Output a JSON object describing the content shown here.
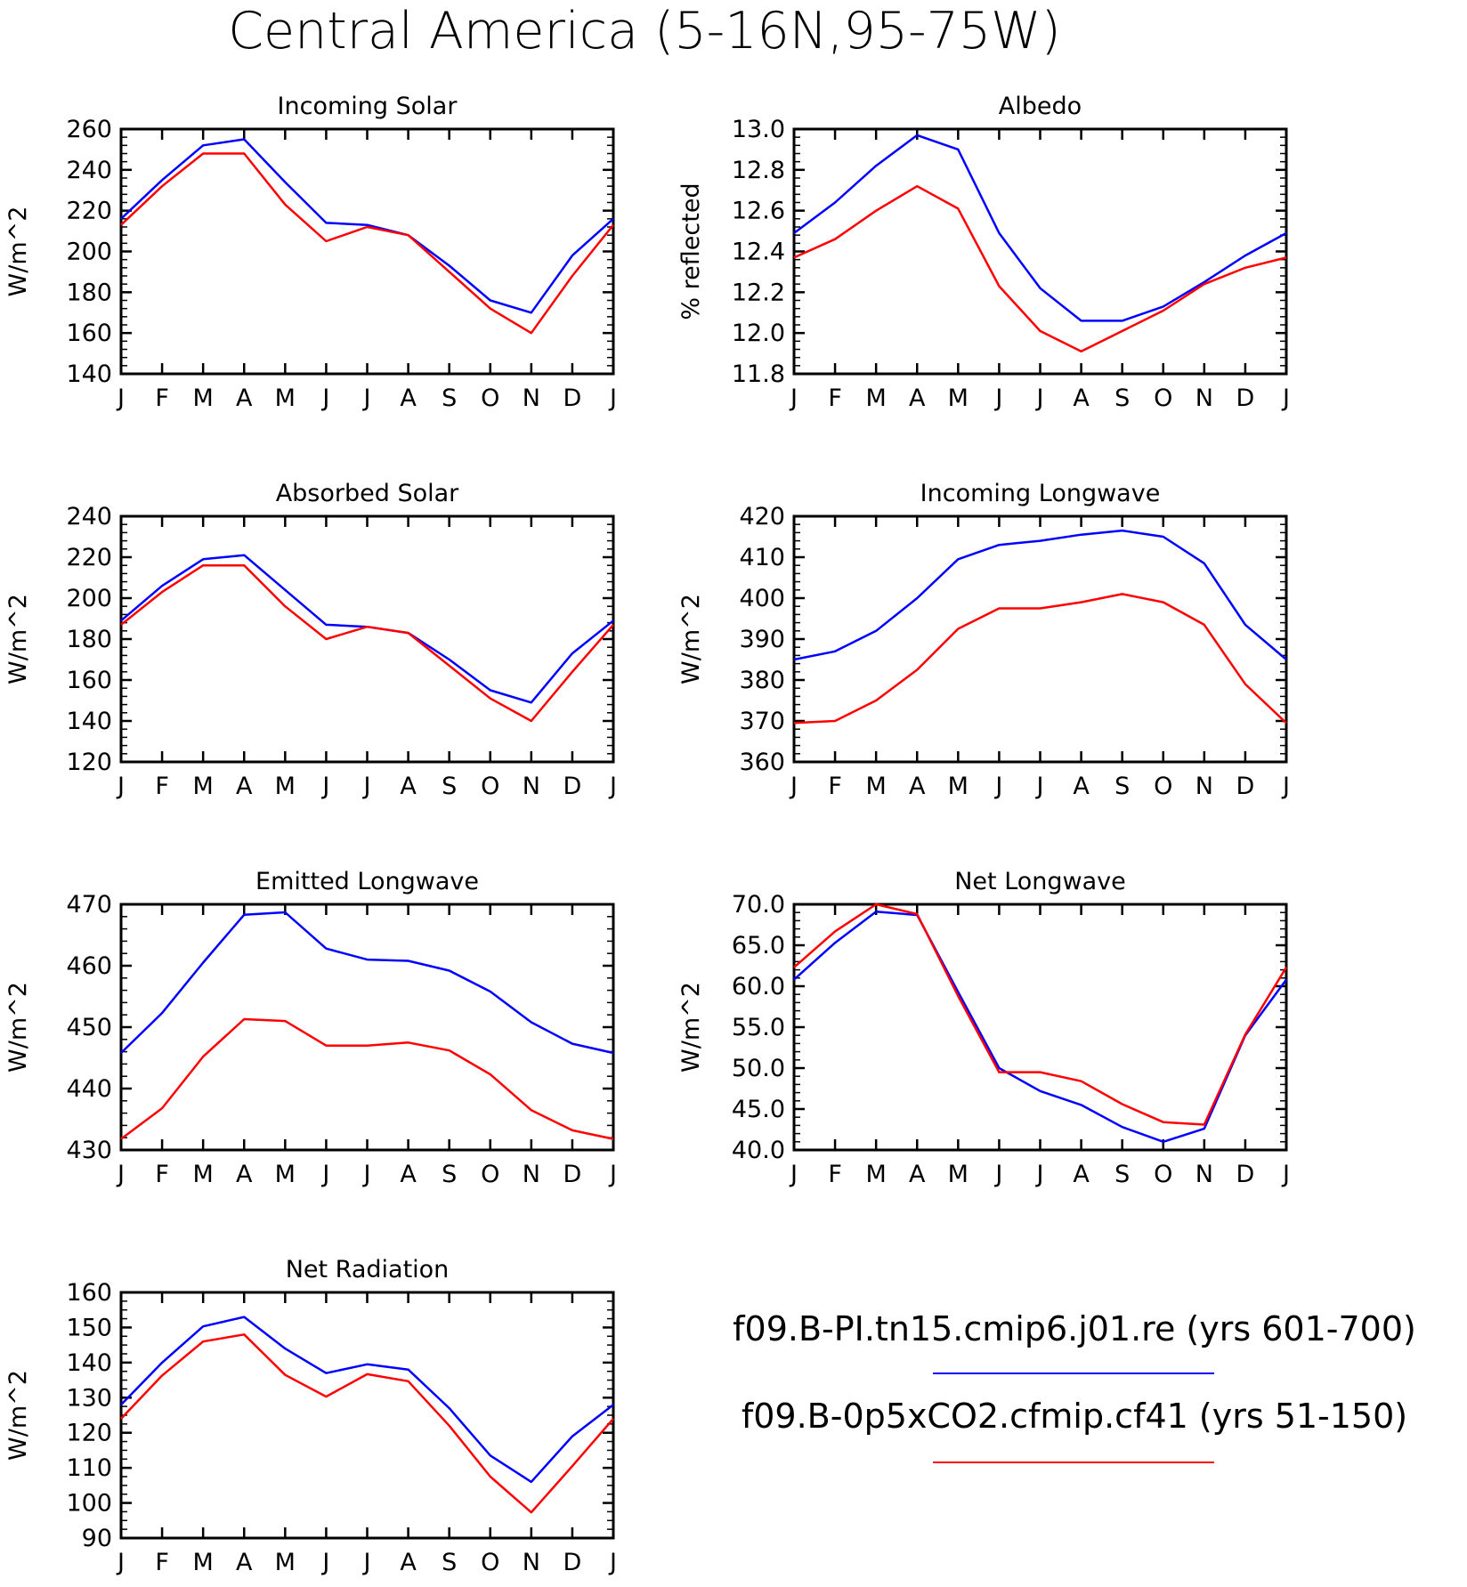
{
  "title": "Central America (5-16N,95-75W)",
  "legend": [
    {
      "label": "f09.B-PI.tn15.cmip6.j01.re (yrs 601-700)",
      "color": "#0000ff"
    },
    {
      "label": "f09.B-0p5xCO2.cfmip.cf41 (yrs 51-150)",
      "color": "#ff0000"
    }
  ],
  "chart_data": [
    {
      "type": "line",
      "title": "Incoming Solar",
      "ylabel": "W/m^2",
      "x": [
        "J",
        "F",
        "M",
        "A",
        "M",
        "J",
        "J",
        "A",
        "S",
        "O",
        "N",
        "D",
        "J"
      ],
      "ylim": [
        140,
        260
      ],
      "yticks": [
        "140",
        "160",
        "180",
        "200",
        "220",
        "240",
        "260"
      ],
      "grid": false,
      "series": [
        {
          "name": "f09.B-PI.tn15.cmip6.j01.re (yrs 601-700)",
          "color": "#0000ff",
          "values": [
            216,
            235,
            252,
            255,
            234,
            214,
            213,
            208,
            193,
            176,
            170,
            198,
            216
          ]
        },
        {
          "name": "f09.B-0p5xCO2.cfmip.cf41 (yrs 51-150)",
          "color": "#ff0000",
          "values": [
            213,
            232,
            248,
            248,
            223,
            205,
            212,
            208,
            190,
            172,
            160,
            188,
            213
          ]
        }
      ]
    },
    {
      "type": "line",
      "title": "Albedo",
      "ylabel": "% reflected",
      "x": [
        "J",
        "F",
        "M",
        "A",
        "M",
        "J",
        "J",
        "A",
        "S",
        "O",
        "N",
        "D",
        "J"
      ],
      "ylim": [
        11.8,
        13.0
      ],
      "yticks": [
        "11.8",
        "12.0",
        "12.2",
        "12.4",
        "12.6",
        "12.8",
        "13.0"
      ],
      "grid": false,
      "series": [
        {
          "name": "f09.B-PI.tn15.cmip6.j01.re (yrs 601-700)",
          "color": "#0000ff",
          "values": [
            12.49,
            12.64,
            12.82,
            12.97,
            12.9,
            12.49,
            12.22,
            12.06,
            12.06,
            12.13,
            12.25,
            12.38,
            12.49
          ]
        },
        {
          "name": "f09.B-0p5xCO2.cfmip.cf41 (yrs 51-150)",
          "color": "#ff0000",
          "values": [
            12.37,
            12.46,
            12.6,
            12.72,
            12.61,
            12.23,
            12.01,
            11.91,
            12.01,
            12.11,
            12.24,
            12.32,
            12.37
          ]
        }
      ]
    },
    {
      "type": "line",
      "title": "Absorbed Solar",
      "ylabel": "W/m^2",
      "x": [
        "J",
        "F",
        "M",
        "A",
        "M",
        "J",
        "J",
        "A",
        "S",
        "O",
        "N",
        "D",
        "J"
      ],
      "ylim": [
        120,
        240
      ],
      "yticks": [
        "120",
        "140",
        "160",
        "180",
        "200",
        "220",
        "240"
      ],
      "grid": false,
      "series": [
        {
          "name": "f09.B-PI.tn15.cmip6.j01.re (yrs 601-700)",
          "color": "#0000ff",
          "values": [
            189,
            206,
            219,
            221,
            204,
            187,
            186,
            183,
            170,
            155,
            149,
            173,
            189
          ]
        },
        {
          "name": "f09.B-0p5xCO2.cfmip.cf41 (yrs 51-150)",
          "color": "#ff0000",
          "values": [
            187,
            203,
            216,
            216,
            196,
            180,
            186,
            183,
            167,
            151,
            140,
            164,
            187
          ]
        }
      ]
    },
    {
      "type": "line",
      "title": "Incoming Longwave",
      "ylabel": "W/m^2",
      "x": [
        "J",
        "F",
        "M",
        "A",
        "M",
        "J",
        "J",
        "A",
        "S",
        "O",
        "N",
        "D",
        "J"
      ],
      "ylim": [
        360,
        420
      ],
      "yticks": [
        "360",
        "370",
        "380",
        "390",
        "400",
        "410",
        "420"
      ],
      "grid": false,
      "series": [
        {
          "name": "f09.B-PI.tn15.cmip6.j01.re (yrs 601-700)",
          "color": "#0000ff",
          "values": [
            385,
            387,
            392,
            400,
            409.5,
            413,
            414,
            415.5,
            416.5,
            415,
            408.5,
            393.5,
            385
          ]
        },
        {
          "name": "f09.B-0p5xCO2.cfmip.cf41 (yrs 51-150)",
          "color": "#ff0000",
          "values": [
            369.5,
            370,
            375,
            382.5,
            392.5,
            397.5,
            397.5,
            399,
            401,
            399,
            393.5,
            379,
            369.5
          ]
        }
      ]
    },
    {
      "type": "line",
      "title": "Emitted Longwave",
      "ylabel": "W/m^2",
      "x": [
        "J",
        "F",
        "M",
        "A",
        "M",
        "J",
        "J",
        "A",
        "S",
        "O",
        "N",
        "D",
        "J"
      ],
      "ylim": [
        430,
        470
      ],
      "yticks": [
        "430",
        "440",
        "450",
        "460",
        "470"
      ],
      "grid": false,
      "series": [
        {
          "name": "f09.B-PI.tn15.cmip6.j01.re (yrs 601-700)",
          "color": "#0000ff",
          "values": [
            445.8,
            452.3,
            460.5,
            468.3,
            468.7,
            462.8,
            461,
            460.8,
            459.2,
            455.8,
            450.8,
            447.3,
            445.8
          ]
        },
        {
          "name": "f09.B-0p5xCO2.cfmip.cf41 (yrs 51-150)",
          "color": "#ff0000",
          "values": [
            431.8,
            436.8,
            445.2,
            451.3,
            451,
            447,
            447,
            447.5,
            446.2,
            442.3,
            436.5,
            433.2,
            431.8
          ]
        }
      ]
    },
    {
      "type": "line",
      "title": "Net Longwave",
      "ylabel": "W/m^2",
      "x": [
        "J",
        "F",
        "M",
        "A",
        "M",
        "J",
        "J",
        "A",
        "S",
        "O",
        "N",
        "D",
        "J"
      ],
      "ylim": [
        40,
        70
      ],
      "yticks": [
        "40.0",
        "45.0",
        "50.0",
        "55.0",
        "60.0",
        "65.0",
        "70.0"
      ],
      "grid": false,
      "series": [
        {
          "name": "f09.B-PI.tn15.cmip6.j01.re (yrs 601-700)",
          "color": "#0000ff",
          "values": [
            60.8,
            65.3,
            69.1,
            68.7,
            59.3,
            50,
            47.2,
            45.5,
            42.8,
            41,
            42.6,
            54,
            60.8
          ]
        },
        {
          "name": "f09.B-0p5xCO2.cfmip.cf41 (yrs 51-150)",
          "color": "#ff0000",
          "values": [
            62.3,
            66.7,
            70,
            68.8,
            58.8,
            49.5,
            49.5,
            48.4,
            45.6,
            43.4,
            43.1,
            54.1,
            62.3
          ]
        }
      ]
    },
    {
      "type": "line",
      "title": "Net Radiation",
      "ylabel": "W/m^2",
      "x": [
        "J",
        "F",
        "M",
        "A",
        "M",
        "J",
        "J",
        "A",
        "S",
        "O",
        "N",
        "D",
        "J"
      ],
      "ylim": [
        90,
        160
      ],
      "yticks": [
        "90",
        "100",
        "110",
        "120",
        "130",
        "140",
        "150",
        "160"
      ],
      "grid": false,
      "series": [
        {
          "name": "f09.B-PI.tn15.cmip6.j01.re (yrs 601-700)",
          "color": "#0000ff",
          "values": [
            128,
            140,
            150.3,
            153,
            144,
            137,
            139.5,
            138,
            127,
            113.5,
            106,
            119,
            128
          ]
        },
        {
          "name": "f09.B-0p5xCO2.cfmip.cf41 (yrs 51-150)",
          "color": "#ff0000",
          "values": [
            124,
            136.3,
            146,
            148,
            136.5,
            130.3,
            136.7,
            134.7,
            122,
            107.5,
            97.3,
            110.5,
            124
          ]
        }
      ]
    }
  ]
}
